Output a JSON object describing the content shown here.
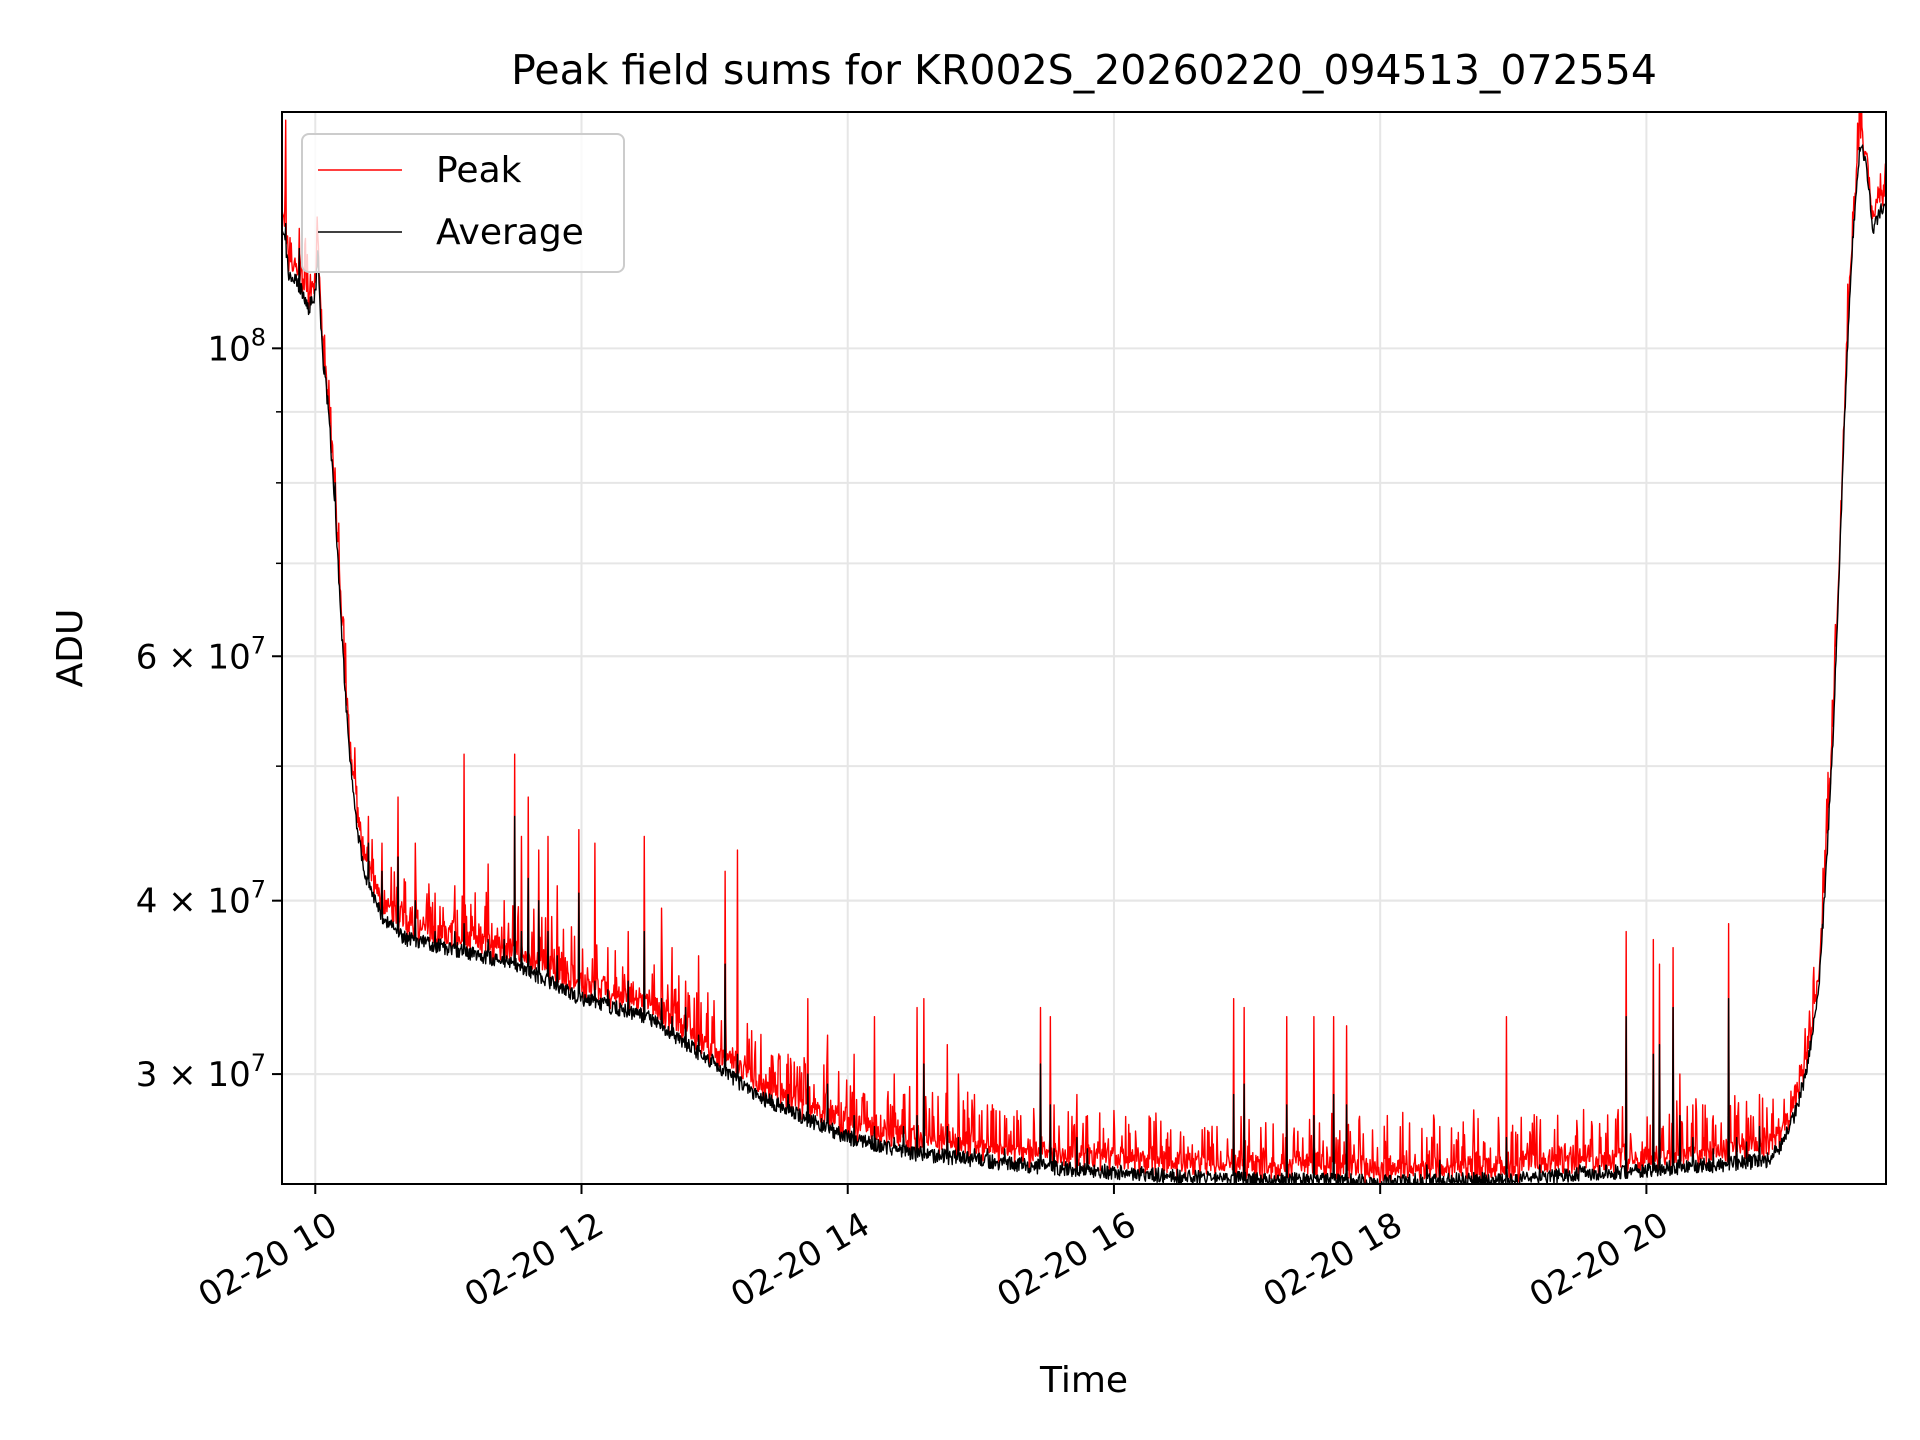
{
  "chart_data": {
    "type": "line",
    "title": "Peak field sums for KR002S_20260220_094513_072554",
    "xlabel": "Time",
    "ylabel": "ADU",
    "yscale": "log",
    "x_unit": "hours (2026-02-20)",
    "xlim": [
      9.75,
      21.8
    ],
    "ylim": [
      25000000,
      148000000
    ],
    "grid": true,
    "legend_position": "top-left",
    "x_ticks": [
      {
        "value": 10,
        "label": "02-20 10"
      },
      {
        "value": 12,
        "label": "02-20 12"
      },
      {
        "value": 14,
        "label": "02-20 14"
      },
      {
        "value": 16,
        "label": "02-20 16"
      },
      {
        "value": 18,
        "label": "02-20 18"
      },
      {
        "value": 20,
        "label": "02-20 20"
      }
    ],
    "y_major_ticks": [
      {
        "value": 100000000,
        "base": "10",
        "exp": "8",
        "mant": ""
      },
      {
        "value": 60000000,
        "base": "10",
        "exp": "7",
        "mant": "6 × "
      },
      {
        "value": 40000000,
        "base": "10",
        "exp": "7",
        "mant": "4 × "
      },
      {
        "value": 30000000,
        "base": "10",
        "exp": "7",
        "mant": "3 × "
      }
    ],
    "y_minor_ticks": [
      30000000,
      40000000,
      50000000,
      60000000,
      70000000,
      80000000,
      90000000
    ],
    "series": [
      {
        "name": "Peak",
        "color": "#ff0000"
      },
      {
        "name": "Average",
        "color": "#000000"
      }
    ],
    "baseline": {
      "x": [
        9.75,
        9.78,
        9.8,
        9.85,
        9.9,
        9.95,
        10.0,
        10.02,
        10.05,
        10.1,
        10.15,
        10.2,
        10.25,
        10.3,
        10.35,
        10.4,
        10.5,
        10.6,
        10.7,
        11.0,
        11.5,
        12.0,
        12.5,
        13.0,
        13.3,
        14.0,
        14.5,
        15.0,
        15.5,
        16.0,
        16.5,
        17.0,
        17.5,
        18.0,
        18.5,
        19.0,
        19.5,
        20.0,
        20.5,
        20.9,
        21.0,
        21.1,
        21.2,
        21.3,
        21.35,
        21.4,
        21.45,
        21.5,
        21.55,
        21.6,
        21.62,
        21.65,
        21.7,
        21.75,
        21.8
      ],
      "y": [
        123000000,
        118000000,
        113000000,
        112000000,
        110000000,
        107000000,
        109000000,
        118000000,
        100000000,
        90000000,
        76000000,
        62000000,
        52000000,
        46000000,
        43000000,
        41000000,
        39000000,
        38000000,
        37500000,
        37000000,
        36000000,
        34000000,
        33000000,
        30500000,
        29000000,
        27000000,
        26300000,
        26000000,
        25700000,
        25500000,
        25300000,
        25200000,
        25150000,
        25100000,
        25150000,
        25200000,
        25400000,
        25600000,
        25800000,
        26000000,
        26500000,
        27800000,
        30000000,
        35000000,
        42000000,
        52000000,
        70000000,
        95000000,
        120000000,
        138000000,
        139000000,
        137000000,
        122000000,
        125000000,
        128000000
      ]
    },
    "spikes": {
      "x": [
        9.78,
        9.88,
        10.02,
        10.15,
        10.4,
        10.5,
        10.62,
        10.75,
        10.9,
        11.05,
        11.12,
        11.3,
        11.42,
        11.5,
        11.55,
        11.6,
        11.68,
        11.75,
        11.82,
        11.98,
        12.1,
        12.2,
        12.35,
        12.47,
        12.6,
        12.68,
        12.78,
        12.88,
        12.98,
        13.08,
        13.17,
        13.3,
        13.45,
        13.55,
        13.7,
        13.85,
        14.05,
        14.2,
        14.35,
        14.42,
        14.52,
        14.57,
        14.75,
        14.83,
        14.95,
        15.05,
        15.18,
        15.3,
        15.45,
        15.52,
        15.55,
        15.72,
        15.8,
        16.9,
        16.98,
        17.3,
        17.5,
        17.65,
        17.75,
        18.35,
        18.45,
        18.95,
        19.2,
        19.5,
        19.85,
        20.05,
        20.1,
        20.2,
        20.25,
        20.35,
        20.5,
        20.62,
        20.68,
        20.75,
        20.85
      ],
      "peak": [
        146000000,
        122000000,
        120000000,
        82000000,
        46000000,
        44000000,
        47500000,
        44000000,
        40500000,
        41000000,
        51000000,
        42500000,
        40000000,
        51000000,
        44500000,
        47500000,
        43500000,
        44500000,
        41000000,
        45000000,
        44000000,
        37000000,
        38000000,
        44500000,
        39500000,
        37000000,
        35000000,
        36500000,
        33000000,
        42000000,
        43500000,
        31000000,
        30000000,
        31000000,
        34000000,
        32000000,
        31000000,
        33000000,
        30000000,
        29000000,
        33500000,
        34000000,
        31500000,
        30000000,
        29000000,
        28500000,
        28000000,
        28000000,
        33500000,
        33000000,
        28500000,
        29000000,
        28000000,
        34000000,
        33500000,
        33000000,
        33000000,
        33000000,
        32500000,
        27000000,
        27500000,
        33000000,
        27000000,
        26500000,
        38000000,
        37500000,
        36000000,
        37000000,
        30000000,
        28500000,
        27500000,
        38500000,
        28000000,
        28000000,
        29000000
      ],
      "avg": [
        123000000,
        118000000,
        117000000,
        80000000,
        44000000,
        42000000,
        43000000,
        40000000,
        38000000,
        38000000,
        38500000,
        37500000,
        37500000,
        46000000,
        38000000,
        41500000,
        40000000,
        38000000,
        36500000,
        40500000,
        35000000,
        34500000,
        35000000,
        38000000,
        34000000,
        33000000,
        33500000,
        32000000,
        31000000,
        36000000,
        31000000,
        29000000,
        28500000,
        29000000,
        30000000,
        29500000,
        28000000,
        27500000,
        27000000,
        27500000,
        28000000,
        30500000,
        27500000,
        27000000,
        26500000,
        26500000,
        26500000,
        26000000,
        30500000,
        28500000,
        26500000,
        27000000,
        26500000,
        29000000,
        29500000,
        28500000,
        28000000,
        29000000,
        28500000,
        25800000,
        26000000,
        27000000,
        25800000,
        25800000,
        33000000,
        31000000,
        31500000,
        33500000,
        28000000,
        27000000,
        26500000,
        34000000,
        27000000,
        26800000,
        27500000
      ]
    }
  }
}
